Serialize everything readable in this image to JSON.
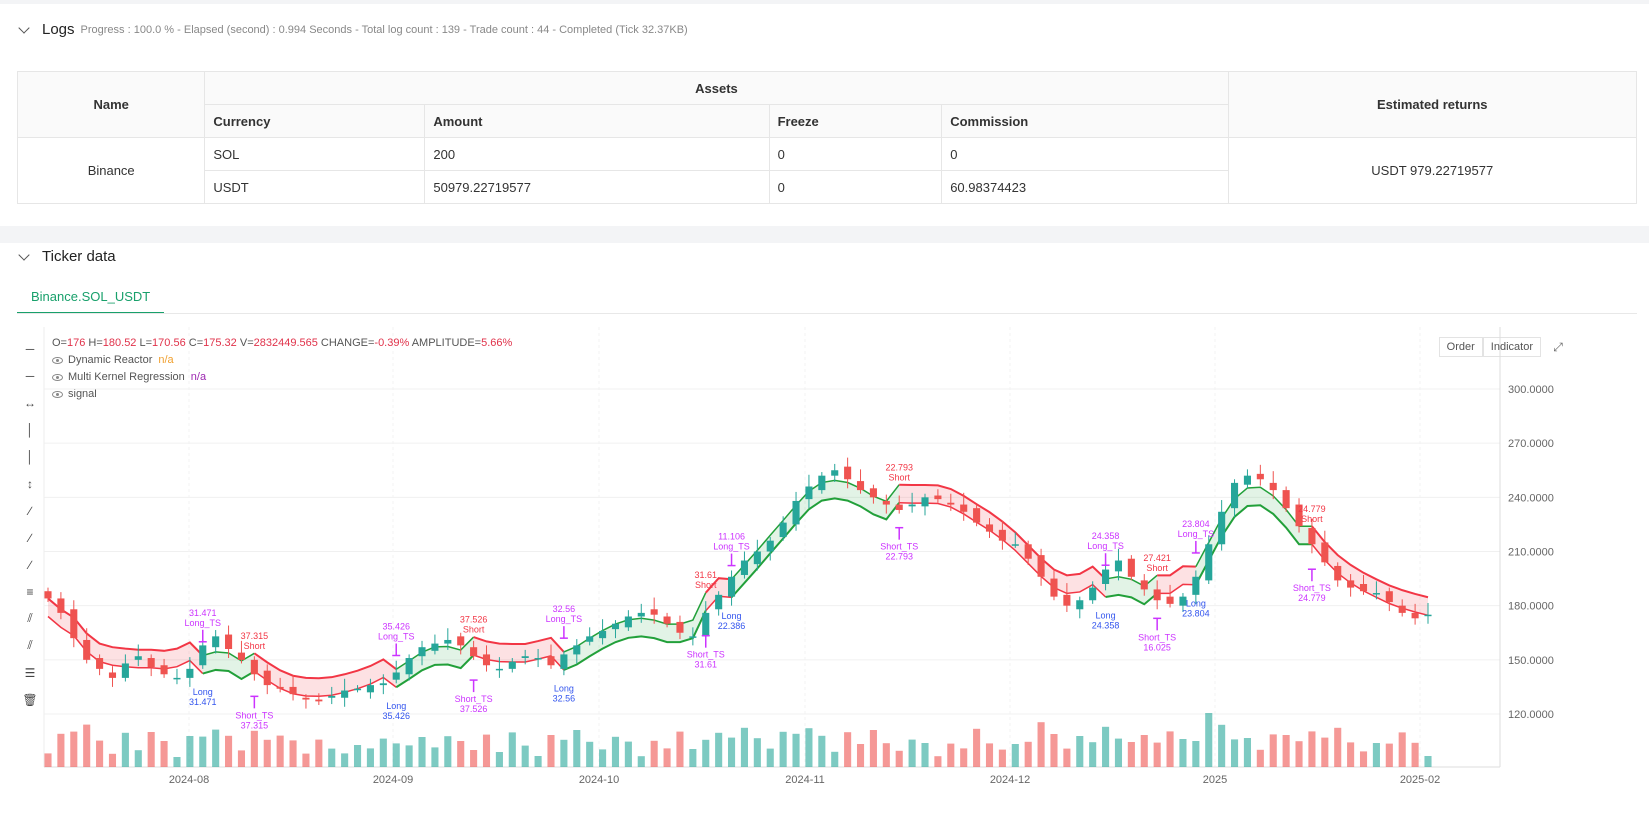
{
  "logs": {
    "title": "Logs",
    "progress": "Progress : 100.0 % - Elapsed (second) : 0.994  Seconds - Total log count : 139 - Trade count : 44 - Completed (Tick 32.37KB)"
  },
  "assets_table": {
    "headers": {
      "name": "Name",
      "assets": "Assets",
      "estimated": "Estimated returns",
      "currency": "Currency",
      "amount": "Amount",
      "freeze": "Freeze",
      "commission": "Commission"
    },
    "exchange": "Binance",
    "rows": [
      {
        "currency": "SOL",
        "amount": "200",
        "freeze": "0",
        "commission": "0"
      },
      {
        "currency": "USDT",
        "amount": "50979.22719577",
        "freeze": "0",
        "commission": "60.98374423"
      }
    ],
    "estimated_returns": "USDT 979.22719577"
  },
  "ticker": {
    "title": "Ticker data",
    "tab": "Binance.SOL_USDT",
    "buttons": {
      "order": "Order",
      "indicator": "Indicator"
    },
    "tools": [
      "line-tool-icon",
      "ray-tool-icon",
      "extended-line-icon",
      "vertical-line-icon",
      "vertical-segment-icon",
      "price-range-icon",
      "trend-line-icon",
      "arrow-line-icon",
      "parallel-channel-icon",
      "fib-icon",
      "pitchfork-icon",
      "pen-icon",
      "measure-icon",
      "trash-icon"
    ]
  },
  "legend": {
    "ohlc": {
      "o": "176",
      "h": "180.52",
      "l": "170.56",
      "c": "175.32",
      "v": "2832449.565",
      "change": "-0.39%",
      "amplitude": "5.66%"
    },
    "labels": {
      "o": "O=",
      "h": " H=",
      "l": " L=",
      "c": " C=",
      "v": " V=",
      "change": " CHANGE=",
      "amplitude": " AMPLITUDE="
    },
    "indicators": [
      {
        "name": "Dynamic Reactor",
        "value": "n/a"
      },
      {
        "name": "Multi Kernel Regression",
        "value": "n/a"
      },
      {
        "name": "signal",
        "value": ""
      }
    ]
  },
  "chart_data": {
    "type": "candlestick",
    "y_ticks": [
      "300.0000",
      "270.0000",
      "240.0000",
      "210.0000",
      "180.0000",
      "150.0000",
      "120.0000"
    ],
    "y_values": [
      300,
      270,
      240,
      210,
      180,
      150,
      120
    ],
    "x_ticks": [
      "2024-08",
      "2024-09",
      "2024-10",
      "2024-11",
      "2024-12",
      "2025",
      "2025-02"
    ],
    "ylim": [
      100,
      320
    ],
    "colors": {
      "up": "#26a69a",
      "down": "#ef5350",
      "band_red": "#f23645",
      "band_green": "#22a03a",
      "signal": "#cc33ff",
      "long": "#3355ee"
    },
    "trade_labels": [
      {
        "text": "31.471",
        "sub": "Long_TS",
        "kind": "long_ts",
        "i": 12
      },
      {
        "text": "Long",
        "sub": "31.471",
        "kind": "long",
        "i": 12
      },
      {
        "text": "37.315",
        "sub": "Short",
        "kind": "short",
        "i": 16
      },
      {
        "text": "Short_TS",
        "sub": "37.315",
        "kind": "short_ts",
        "i": 16
      },
      {
        "text": "35.426",
        "sub": "Long_TS",
        "kind": "long_ts",
        "i": 27
      },
      {
        "text": "Long",
        "sub": "35.426",
        "kind": "long",
        "i": 27
      },
      {
        "text": "37.526",
        "sub": "Short",
        "kind": "short",
        "i": 33
      },
      {
        "text": "Short_TS",
        "sub": "37.526",
        "kind": "short_ts",
        "i": 33
      },
      {
        "text": "32.56",
        "sub": "Long_TS",
        "kind": "long_ts",
        "i": 40
      },
      {
        "text": "Long",
        "sub": "32.56",
        "kind": "long",
        "i": 40
      },
      {
        "text": "31.61",
        "sub": "Short",
        "kind": "short",
        "i": 51
      },
      {
        "text": "Short_TS",
        "sub": "31.61",
        "kind": "short_ts",
        "i": 51
      },
      {
        "text": "11.106",
        "sub": "Long_TS",
        "kind": "long_ts",
        "i": 53
      },
      {
        "text": "Long",
        "sub": "22.386",
        "kind": "long",
        "i": 53
      },
      {
        "text": "22.793",
        "sub": "Short",
        "kind": "short",
        "i": 66
      },
      {
        "text": "Short_TS",
        "sub": "22.793",
        "kind": "short_ts",
        "i": 66
      },
      {
        "text": "24.358",
        "sub": "Long_TS",
        "kind": "long_ts",
        "i": 82
      },
      {
        "text": "Long",
        "sub": "24.358",
        "kind": "long",
        "i": 82
      },
      {
        "text": "27.421",
        "sub": "Short",
        "kind": "short",
        "i": 86
      },
      {
        "text": "Short_TS",
        "sub": "16.025",
        "kind": "short_ts",
        "i": 86
      },
      {
        "text": "23.804",
        "sub": "Long_TS",
        "kind": "long_ts",
        "i": 89
      },
      {
        "text": "Long",
        "sub": "23.804",
        "kind": "long",
        "i": 89
      },
      {
        "text": "24.779",
        "sub": "Short",
        "kind": "short",
        "i": 98
      },
      {
        "text": "Short_TS",
        "sub": "24.779",
        "kind": "short_ts",
        "i": 98
      }
    ],
    "closes": [
      184,
      176,
      162,
      150,
      145,
      140,
      148,
      152,
      146,
      142,
      140,
      145,
      158,
      163,
      156,
      150,
      142,
      136,
      134,
      131,
      128,
      127,
      130,
      133,
      134,
      136,
      137,
      143,
      151,
      157,
      159,
      161,
      158,
      152,
      147,
      145,
      149,
      152,
      151,
      147,
      153,
      158,
      163,
      166,
      170,
      174,
      176,
      175,
      170,
      165,
      163,
      176,
      186,
      196,
      205,
      210,
      216,
      226,
      238,
      246,
      252,
      255,
      250,
      244,
      240,
      236,
      233,
      236,
      240,
      239,
      236,
      232,
      226,
      221,
      216,
      214,
      206,
      196,
      185,
      180,
      183,
      190,
      200,
      205,
      196,
      189,
      183,
      181,
      185,
      196,
      214,
      232,
      248,
      252,
      250,
      244,
      234,
      224,
      214,
      204,
      194,
      190,
      188,
      187,
      182,
      176,
      173,
      175
    ]
  }
}
